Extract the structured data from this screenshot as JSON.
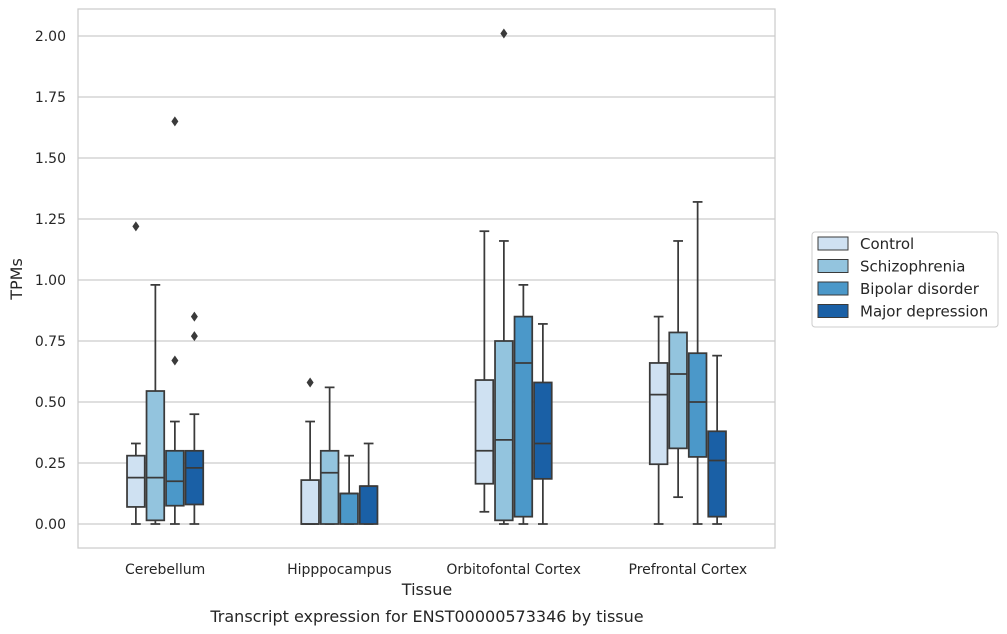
{
  "caption": "Transcript expression for ENST00000573346 by tissue",
  "chart_data": {
    "type": "box",
    "xlabel": "Tissue",
    "ylabel": "TPMs",
    "categories": [
      "Cerebellum",
      "Hipppocampus",
      "Orbitofontal Cortex",
      "Prefrontal Cortex"
    ],
    "ylim": [
      -0.1,
      2.12
    ],
    "yticks": [
      "0.00",
      "0.25",
      "0.50",
      "0.75",
      "1.00",
      "1.25",
      "1.50",
      "1.75",
      "2.00"
    ],
    "ytick_values": [
      0,
      0.25,
      0.5,
      0.75,
      1.0,
      1.25,
      1.5,
      1.75,
      2.0
    ],
    "grid": "horizontal",
    "legend_position": "right",
    "series": [
      {
        "name": "Control",
        "color": "#cfe1f2",
        "boxes": [
          {
            "whislo": 0.0,
            "q1": 0.07,
            "med": 0.19,
            "q3": 0.28,
            "whishi": 0.33,
            "fliers": [
              1.22
            ]
          },
          {
            "whislo": 0.0,
            "q1": 0.0,
            "med": 0.0,
            "q3": 0.18,
            "whishi": 0.42,
            "fliers": [
              0.58
            ]
          },
          {
            "whislo": 0.05,
            "q1": 0.165,
            "med": 0.3,
            "q3": 0.59,
            "whishi": 1.2,
            "fliers": []
          },
          {
            "whislo": 0.0,
            "q1": 0.245,
            "med": 0.53,
            "q3": 0.66,
            "whishi": 0.85,
            "fliers": []
          }
        ]
      },
      {
        "name": "Schizophrenia",
        "color": "#93c4de",
        "boxes": [
          {
            "whislo": 0.0,
            "q1": 0.015,
            "med": 0.19,
            "q3": 0.545,
            "whishi": 0.98,
            "fliers": []
          },
          {
            "whislo": 0.0,
            "q1": 0.0,
            "med": 0.21,
            "q3": 0.3,
            "whishi": 0.56,
            "fliers": []
          },
          {
            "whislo": 0.0,
            "q1": 0.015,
            "med": 0.345,
            "q3": 0.75,
            "whishi": 1.16,
            "fliers": [
              2.01
            ]
          },
          {
            "whislo": 0.11,
            "q1": 0.31,
            "med": 0.615,
            "q3": 0.785,
            "whishi": 1.16,
            "fliers": []
          }
        ]
      },
      {
        "name": "Bipolar disorder",
        "color": "#4b98c9",
        "boxes": [
          {
            "whislo": 0.0,
            "q1": 0.075,
            "med": 0.175,
            "q3": 0.3,
            "whishi": 0.42,
            "fliers": [
              0.67,
              1.65
            ]
          },
          {
            "whislo": 0.0,
            "q1": 0.0,
            "med": 0.125,
            "q3": 0.125,
            "whishi": 0.28,
            "fliers": []
          },
          {
            "whislo": 0.0,
            "q1": 0.03,
            "med": 0.66,
            "q3": 0.85,
            "whishi": 0.98,
            "fliers": []
          },
          {
            "whislo": 0.0,
            "q1": 0.275,
            "med": 0.5,
            "q3": 0.7,
            "whishi": 1.32,
            "fliers": []
          }
        ]
      },
      {
        "name": "Major depression",
        "color": "#1a60a6",
        "boxes": [
          {
            "whislo": 0.0,
            "q1": 0.08,
            "med": 0.23,
            "q3": 0.3,
            "whishi": 0.45,
            "fliers": [
              0.77,
              0.85
            ]
          },
          {
            "whislo": 0.0,
            "q1": 0.0,
            "med": 0.155,
            "q3": 0.155,
            "whishi": 0.33,
            "fliers": []
          },
          {
            "whislo": 0.0,
            "q1": 0.185,
            "med": 0.33,
            "q3": 0.58,
            "whishi": 0.82,
            "fliers": []
          },
          {
            "whislo": 0.0,
            "q1": 0.03,
            "med": 0.26,
            "q3": 0.38,
            "whishi": 0.69,
            "fliers": []
          }
        ]
      }
    ]
  }
}
